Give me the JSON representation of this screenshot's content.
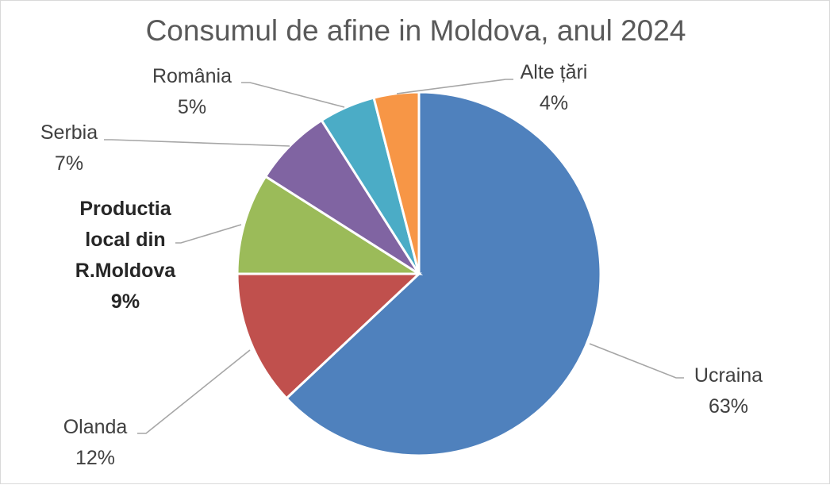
{
  "chart_data": {
    "type": "pie",
    "title": "Consumul de afine in Moldova, anul 2024",
    "slices": [
      {
        "label": "Ucraina",
        "value": 63,
        "value_label": "63%",
        "color": "#4f81bd"
      },
      {
        "label": "Olanda",
        "value": 12,
        "value_label": "12%",
        "color": "#c0504d"
      },
      {
        "label": "Productia local din R.Moldova",
        "label_lines": [
          "Productia",
          "local din",
          "R.Moldova"
        ],
        "value": 9,
        "value_label": "9%",
        "color": "#9bbb59",
        "bold": true
      },
      {
        "label": "Serbia",
        "value": 7,
        "value_label": "7%",
        "color": "#8064a2"
      },
      {
        "label": "România",
        "value": 5,
        "value_label": "5%",
        "color": "#4bacc6"
      },
      {
        "label": "Alte țări",
        "value": 4,
        "value_label": "4%",
        "color": "#f79646"
      }
    ]
  }
}
